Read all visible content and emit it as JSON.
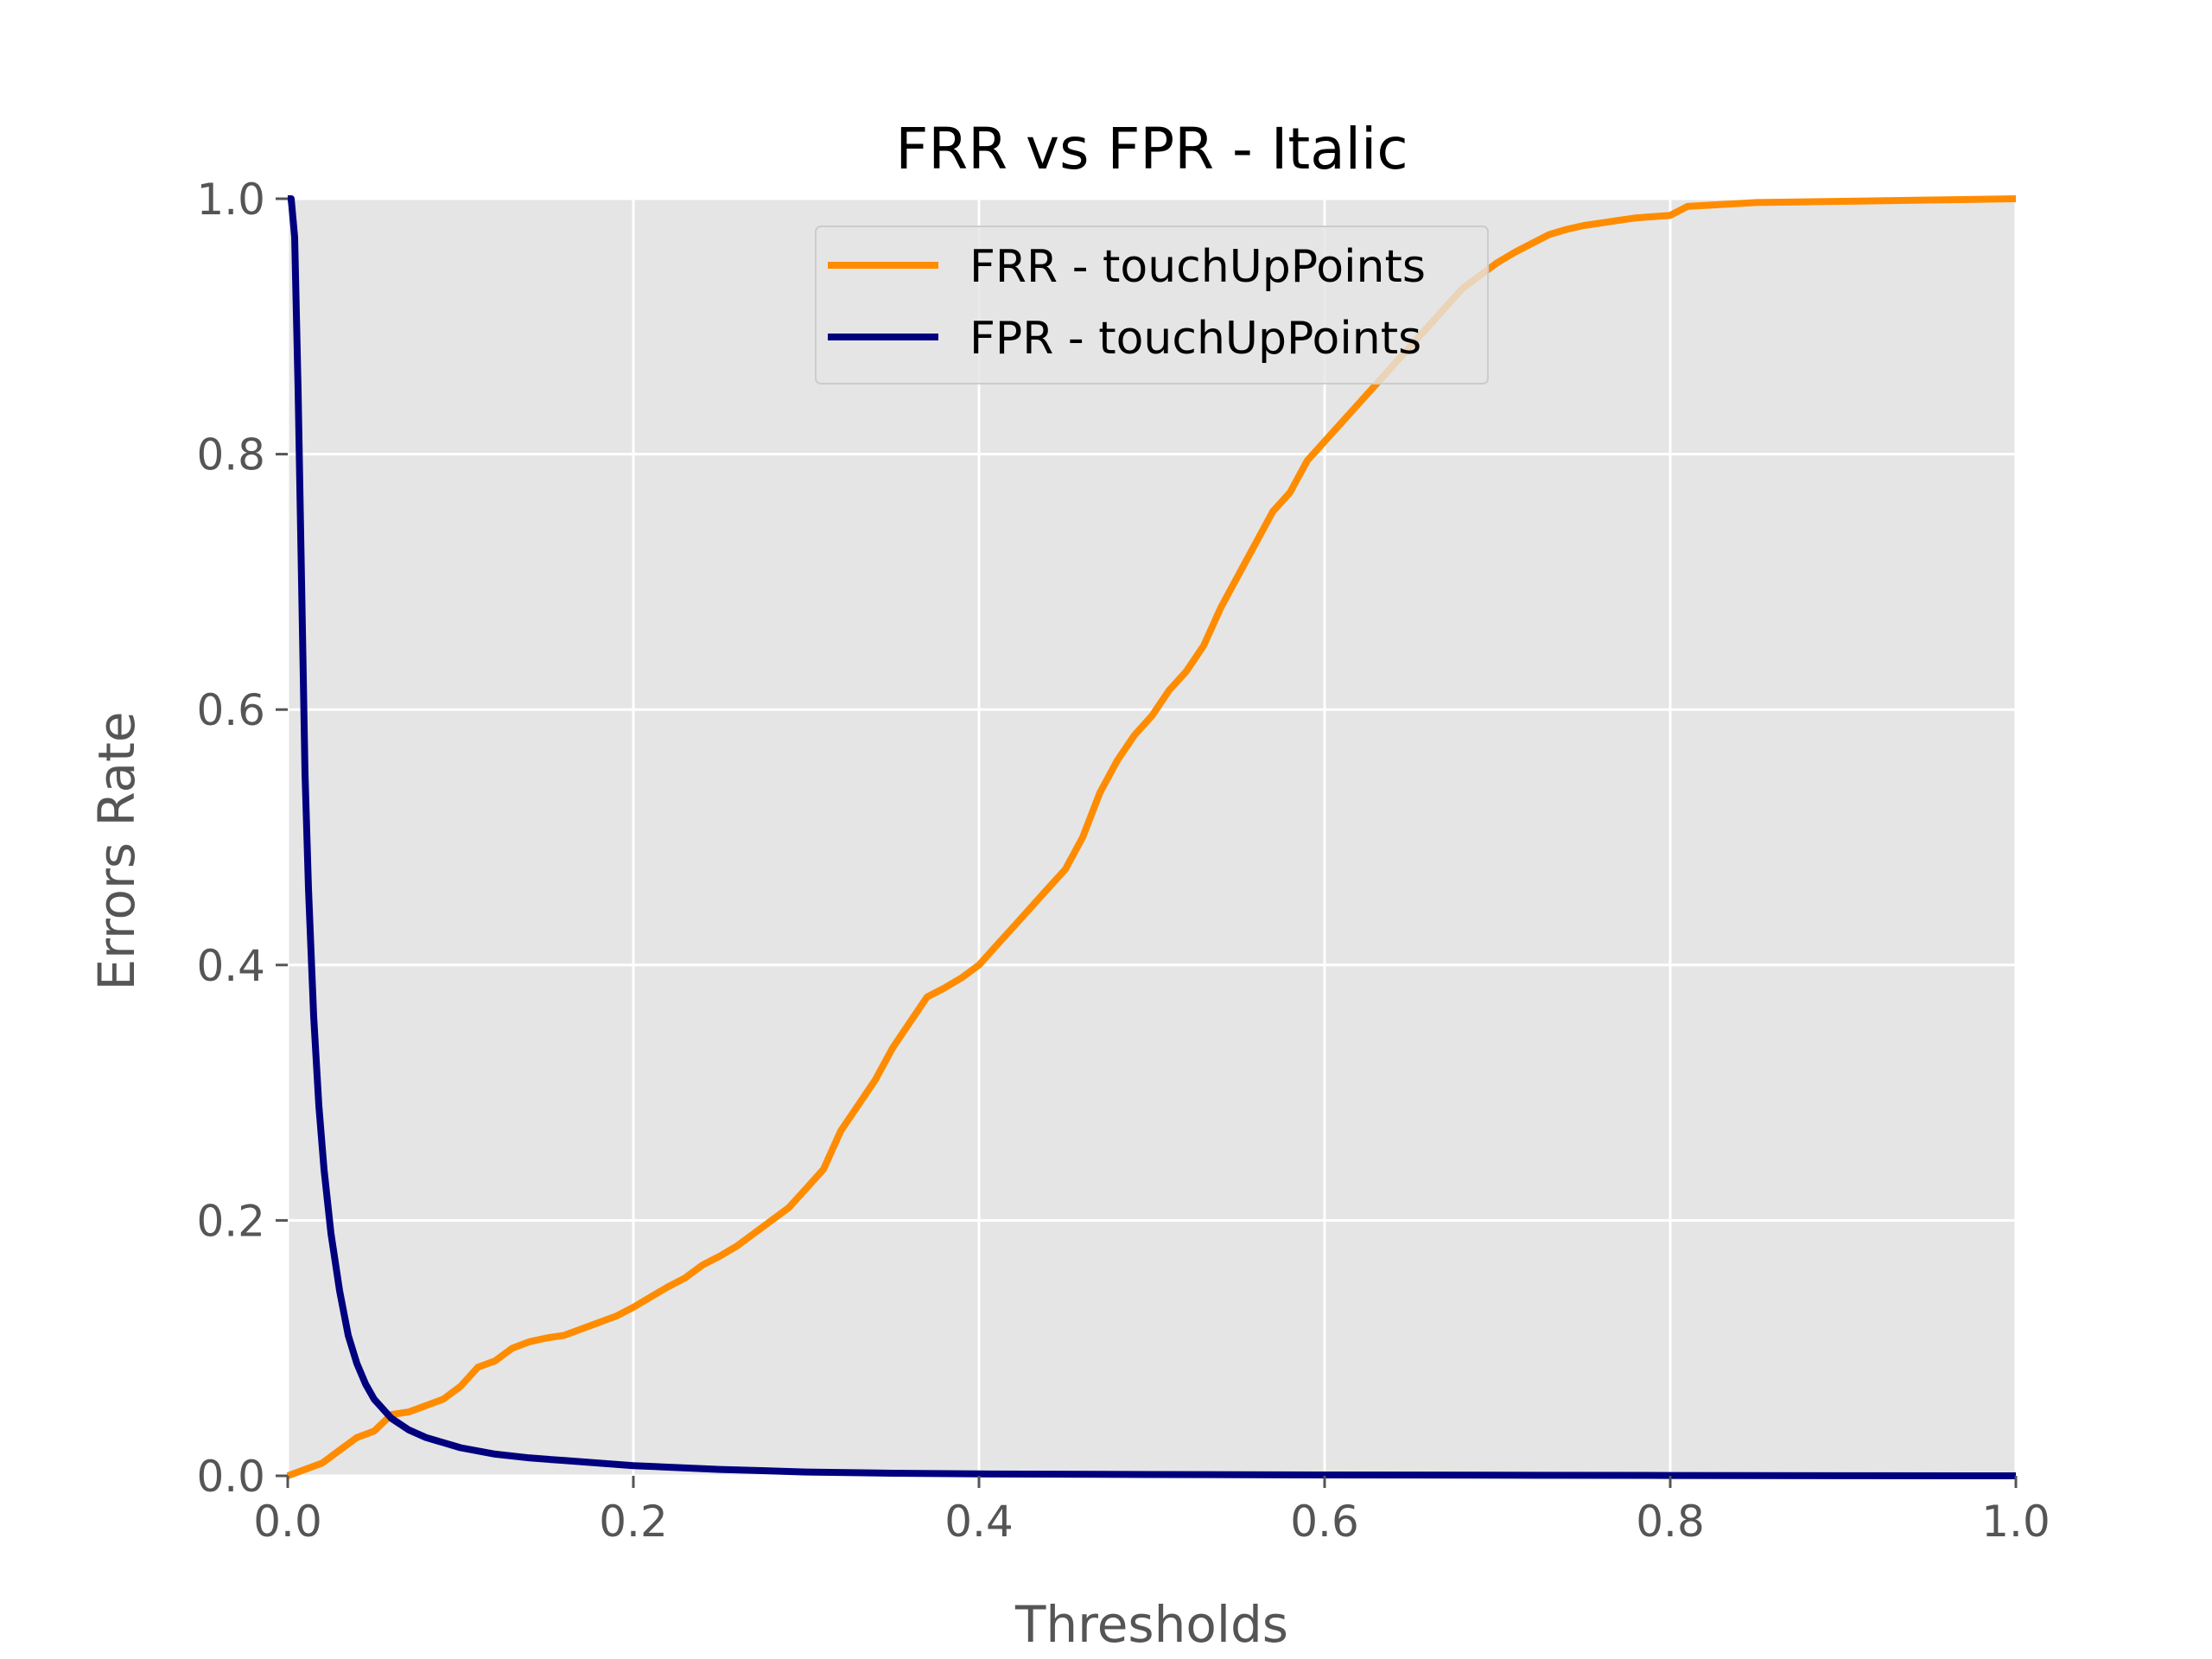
{
  "chart_data": {
    "type": "line",
    "title": "FRR vs FPR - Italic",
    "xlabel": "Thresholds",
    "ylabel": "Errors Rate",
    "xlim": [
      0.0,
      1.0
    ],
    "ylim": [
      0.0,
      1.0
    ],
    "xticks": [
      "0.0",
      "0.2",
      "0.4",
      "0.6",
      "0.8",
      "1.0"
    ],
    "yticks": [
      "0.0",
      "0.2",
      "0.4",
      "0.6",
      "0.8",
      "1.0"
    ],
    "grid": true,
    "legend_position": "upper center",
    "series": [
      {
        "name": "FRR - touchUpPoints",
        "color": "#ff8c00",
        "x": [
          0.0,
          0.01,
          0.02,
          0.03,
          0.04,
          0.05,
          0.06,
          0.07,
          0.08,
          0.09,
          0.1,
          0.11,
          0.12,
          0.13,
          0.14,
          0.15,
          0.16,
          0.17,
          0.18,
          0.19,
          0.2,
          0.21,
          0.22,
          0.23,
          0.24,
          0.25,
          0.26,
          0.27,
          0.28,
          0.29,
          0.3,
          0.31,
          0.32,
          0.33,
          0.34,
          0.35,
          0.36,
          0.37,
          0.38,
          0.39,
          0.4,
          0.41,
          0.42,
          0.43,
          0.44,
          0.45,
          0.46,
          0.47,
          0.48,
          0.49,
          0.5,
          0.51,
          0.52,
          0.53,
          0.54,
          0.55,
          0.56,
          0.57,
          0.58,
          0.59,
          0.6,
          0.61,
          0.62,
          0.63,
          0.64,
          0.65,
          0.66,
          0.67,
          0.68,
          0.69,
          0.7,
          0.71,
          0.72,
          0.73,
          0.74,
          0.75,
          0.76,
          0.77,
          0.78,
          0.79,
          0.8,
          0.81,
          0.85,
          0.9,
          0.95,
          1.0
        ],
        "y": [
          0.0,
          0.005,
          0.01,
          0.02,
          0.03,
          0.035,
          0.048,
          0.05,
          0.055,
          0.06,
          0.07,
          0.085,
          0.09,
          0.1,
          0.105,
          0.108,
          0.11,
          0.115,
          0.12,
          0.125,
          0.132,
          0.14,
          0.148,
          0.155,
          0.165,
          0.172,
          0.18,
          0.19,
          0.2,
          0.21,
          0.225,
          0.24,
          0.27,
          0.29,
          0.31,
          0.335,
          0.355,
          0.375,
          0.382,
          0.39,
          0.4,
          0.415,
          0.43,
          0.445,
          0.46,
          0.475,
          0.5,
          0.535,
          0.56,
          0.58,
          0.595,
          0.615,
          0.63,
          0.65,
          0.68,
          0.705,
          0.73,
          0.755,
          0.77,
          0.795,
          0.81,
          0.825,
          0.84,
          0.855,
          0.87,
          0.885,
          0.9,
          0.915,
          0.93,
          0.94,
          0.95,
          0.958,
          0.965,
          0.972,
          0.976,
          0.979,
          0.981,
          0.983,
          0.985,
          0.986,
          0.987,
          0.994,
          0.997,
          0.998,
          0.999,
          1.0
        ]
      },
      {
        "name": "FPR - touchUpPoints",
        "color": "#00007f",
        "x": [
          0.0,
          0.002,
          0.004,
          0.006,
          0.008,
          0.01,
          0.012,
          0.015,
          0.018,
          0.021,
          0.025,
          0.03,
          0.035,
          0.04,
          0.045,
          0.05,
          0.06,
          0.07,
          0.08,
          0.09,
          0.1,
          0.12,
          0.14,
          0.16,
          0.18,
          0.2,
          0.25,
          0.3,
          0.35,
          0.4,
          0.5,
          0.6,
          0.7,
          0.8,
          0.9,
          1.0
        ],
        "y": [
          1.0,
          1.0,
          0.97,
          0.85,
          0.7,
          0.55,
          0.46,
          0.36,
          0.29,
          0.24,
          0.19,
          0.145,
          0.11,
          0.088,
          0.072,
          0.06,
          0.045,
          0.036,
          0.03,
          0.026,
          0.022,
          0.017,
          0.014,
          0.012,
          0.01,
          0.008,
          0.005,
          0.003,
          0.002,
          0.0015,
          0.001,
          0.0007,
          0.0005,
          0.0003,
          0.0001,
          0.0
        ]
      }
    ]
  }
}
